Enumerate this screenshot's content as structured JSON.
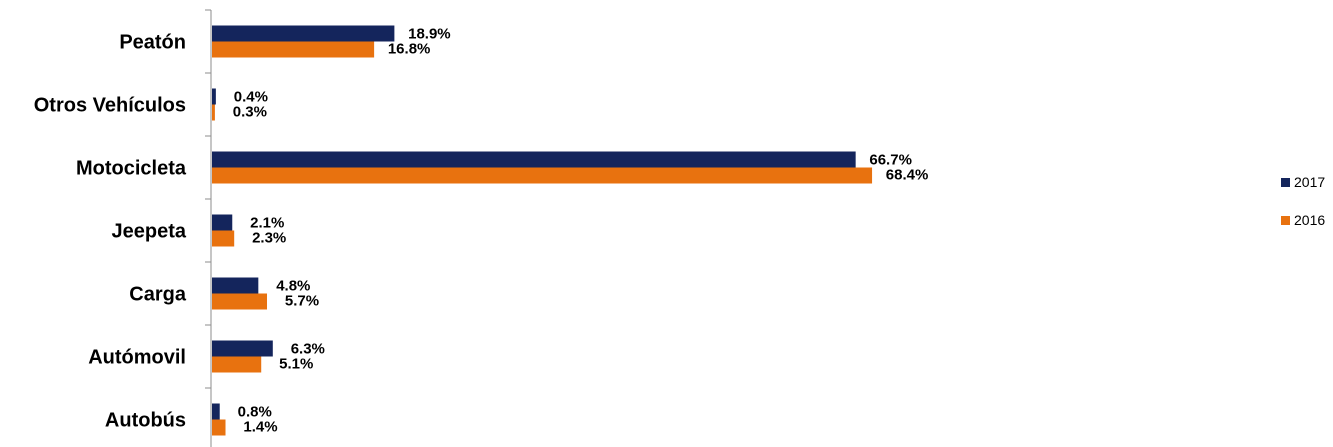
{
  "chart_data": {
    "type": "bar",
    "orientation": "horizontal",
    "categories": [
      "Peatón",
      "Otros Vehículos",
      "Motocicleta",
      "Jeepeta",
      "Carga",
      "Autómovil",
      "Autobús"
    ],
    "series": [
      {
        "name": "2017",
        "color": "#14255C",
        "values": [
          18.9,
          0.4,
          66.7,
          2.1,
          4.8,
          6.3,
          0.8
        ],
        "labels": [
          "18.9%",
          "0.4%",
          "66.7%",
          "2.1%",
          "4.8%",
          "6.3%",
          "0.8%"
        ]
      },
      {
        "name": "2016",
        "color": "#E8720F",
        "values": [
          16.8,
          0.3,
          68.4,
          2.3,
          5.7,
          5.1,
          1.4
        ],
        "labels": [
          "16.8%",
          "0.3%",
          "68.4%",
          "2.3%",
          "5.7%",
          "5.1%",
          "1.4%"
        ]
      }
    ],
    "xlim": [
      0,
      100
    ],
    "grid": false,
    "legend_position": "right"
  }
}
